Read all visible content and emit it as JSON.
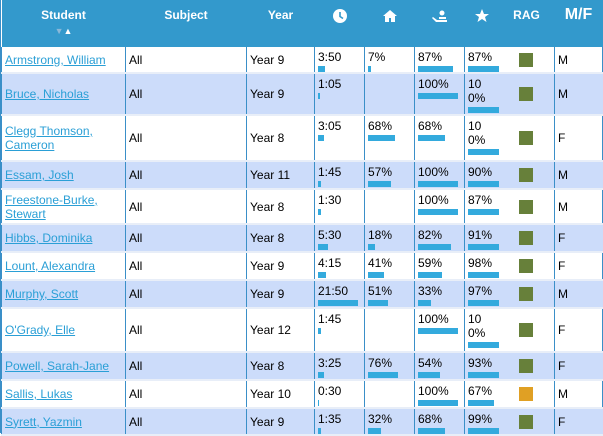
{
  "header": {
    "student": "Student",
    "subject": "Subject",
    "year": "Year",
    "time_icon": "clock-icon",
    "home_icon": "home-icon",
    "teacher_icon": "teacher-icon",
    "star_icon": "star-icon",
    "rag": "RAG",
    "mf": "M/F",
    "sort_down": "▼",
    "sort_up": "▲"
  },
  "colors": {
    "header": "#3399cc",
    "alt_row": "#ccdcfa",
    "bar": "#33aadd",
    "green": "#67803a",
    "amber": "#e0a024"
  },
  "rows": [
    {
      "name": "Armstrong, William",
      "subject": "All",
      "year": "Year 9",
      "time": "3:50",
      "minutes": 3.83,
      "home": "7%",
      "home_v": 7,
      "teacher": "87%",
      "teacher_v": 87,
      "star": "87%",
      "star_v": 87,
      "rag": "green",
      "gender": "M"
    },
    {
      "name": "Bruce, Nicholas",
      "subject": "All",
      "year": "Year 9",
      "time": "1:05",
      "minutes": 1.08,
      "home": "",
      "home_v": null,
      "teacher": "100%",
      "teacher_v": 100,
      "star": "100%",
      "star_v": 100,
      "rag": "green",
      "gender": "M"
    },
    {
      "name": "Clegg Thomson, Cameron",
      "subject": "All",
      "year": "Year 8",
      "time": "3:05",
      "minutes": 3.08,
      "home": "68%",
      "home_v": 68,
      "teacher": "68%",
      "teacher_v": 68,
      "star": "100%",
      "star_v": 100,
      "rag": "green",
      "gender": "F"
    },
    {
      "name": "Essam, Josh",
      "subject": "All",
      "year": "Year 11",
      "time": "1:45",
      "minutes": 1.75,
      "home": "57%",
      "home_v": 57,
      "teacher": "100%",
      "teacher_v": 100,
      "star": "90%",
      "star_v": 90,
      "rag": "green",
      "gender": "M"
    },
    {
      "name": "Freestone-Burke, Stewart",
      "subject": "All",
      "year": "Year 8",
      "time": "1:30",
      "minutes": 1.5,
      "home": "",
      "home_v": null,
      "teacher": "100%",
      "teacher_v": 100,
      "star": "87%",
      "star_v": 87,
      "rag": "green",
      "gender": "M"
    },
    {
      "name": "Hibbs, Dominika",
      "subject": "All",
      "year": "Year 8",
      "time": "5:30",
      "minutes": 5.5,
      "home": "18%",
      "home_v": 18,
      "teacher": "82%",
      "teacher_v": 82,
      "star": "91%",
      "star_v": 91,
      "rag": "green",
      "gender": "F"
    },
    {
      "name": "Lount, Alexandra",
      "subject": "All",
      "year": "Year 9",
      "time": "4:15",
      "minutes": 4.25,
      "home": "41%",
      "home_v": 41,
      "teacher": "59%",
      "teacher_v": 59,
      "star": "98%",
      "star_v": 98,
      "rag": "green",
      "gender": "F"
    },
    {
      "name": "Murphy, Scott",
      "subject": "All",
      "year": "Year 9",
      "time": "21:50",
      "minutes": 21.83,
      "home": "51%",
      "home_v": 51,
      "teacher": "33%",
      "teacher_v": 33,
      "star": "97%",
      "star_v": 97,
      "rag": "green",
      "gender": "M"
    },
    {
      "name": "O'Grady, Elle",
      "subject": "All",
      "year": "Year 12",
      "time": "1:45",
      "minutes": 1.75,
      "home": "",
      "home_v": null,
      "teacher": "100%",
      "teacher_v": 100,
      "star": "100%",
      "star_v": 100,
      "rag": "green",
      "gender": "F"
    },
    {
      "name": "Powell, Sarah-Jane",
      "subject": "All",
      "year": "Year 8",
      "time": "3:25",
      "minutes": 3.42,
      "home": "76%",
      "home_v": 76,
      "teacher": "54%",
      "teacher_v": 54,
      "star": "93%",
      "star_v": 93,
      "rag": "green",
      "gender": "F"
    },
    {
      "name": "Sallis, Lukas",
      "subject": "All",
      "year": "Year 10",
      "time": "0:30",
      "minutes": 0.5,
      "home": "",
      "home_v": null,
      "teacher": "100%",
      "teacher_v": 100,
      "star": "67%",
      "star_v": 67,
      "rag": "amber",
      "gender": "M"
    },
    {
      "name": "Syrett, Yazmin",
      "subject": "All",
      "year": "Year 9",
      "time": "1:35",
      "minutes": 1.58,
      "home": "32%",
      "home_v": 32,
      "teacher": "68%",
      "teacher_v": 68,
      "star": "99%",
      "star_v": 99,
      "rag": "green",
      "gender": "F"
    }
  ]
}
